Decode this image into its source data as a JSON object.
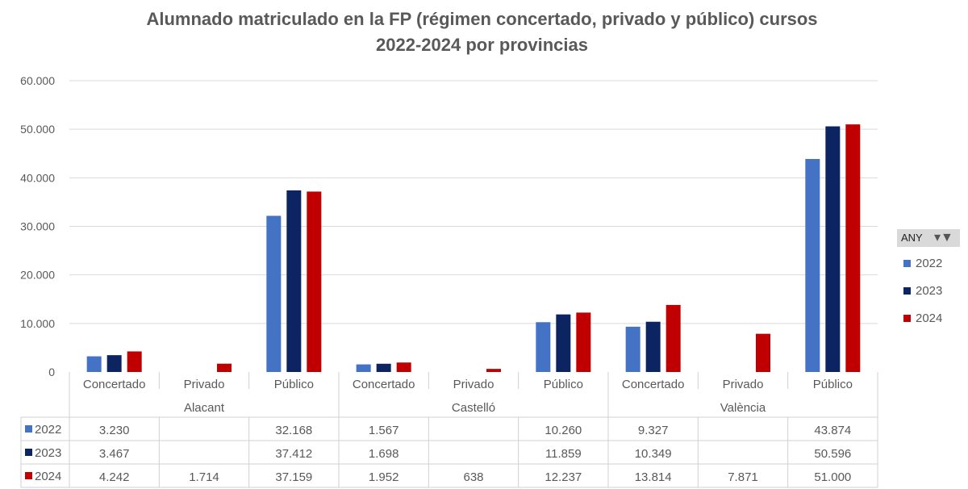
{
  "chart_data": {
    "type": "bar",
    "title": "Alumnado matriculado en la FP (régimen concertado, privado y público) cursos 2022-2024 por provincias",
    "title_lines": [
      "Alumnado matriculado en la FP (régimen concertado, privado y público) cursos",
      "2022-2024 por provincias"
    ],
    "groups": [
      "Alacant",
      "Castelló",
      "València"
    ],
    "categories": [
      "Concertado",
      "Privado",
      "Público",
      "Concertado",
      "Privado",
      "Público",
      "Concertado",
      "Privado",
      "Público"
    ],
    "series": [
      {
        "name": "2022",
        "color": "#4472c4",
        "values": [
          3230,
          null,
          32168,
          1567,
          null,
          10260,
          9327,
          null,
          43874
        ],
        "labels": [
          "3.230",
          "",
          "32.168",
          "1.567",
          "",
          "10.260",
          "9.327",
          "",
          "43.874"
        ]
      },
      {
        "name": "2023",
        "color": "#0c2461",
        "values": [
          3467,
          null,
          37412,
          1698,
          null,
          11859,
          10349,
          null,
          50596
        ],
        "labels": [
          "3.467",
          "",
          "37.412",
          "1.698",
          "",
          "11.859",
          "10.349",
          "",
          "50.596"
        ]
      },
      {
        "name": "2024",
        "color": "#c00000",
        "values": [
          4242,
          1714,
          37159,
          1952,
          638,
          12237,
          13814,
          7871,
          51000
        ],
        "labels": [
          "4.242",
          "1.714",
          "37.159",
          "1.952",
          "638",
          "12.237",
          "13.814",
          "7.871",
          "51.000"
        ]
      }
    ],
    "ylim": [
      0,
      60000
    ],
    "yticks": [
      0,
      10000,
      20000,
      30000,
      40000,
      50000,
      60000
    ],
    "ytick_labels": [
      "0",
      "10.000",
      "20.000",
      "30.000",
      "40.000",
      "50.000",
      "60.000"
    ],
    "grid": true,
    "legend_position": "right",
    "data_table": true
  },
  "filter": {
    "label": "ANY",
    "icon": "filter-dropdown-icon"
  }
}
